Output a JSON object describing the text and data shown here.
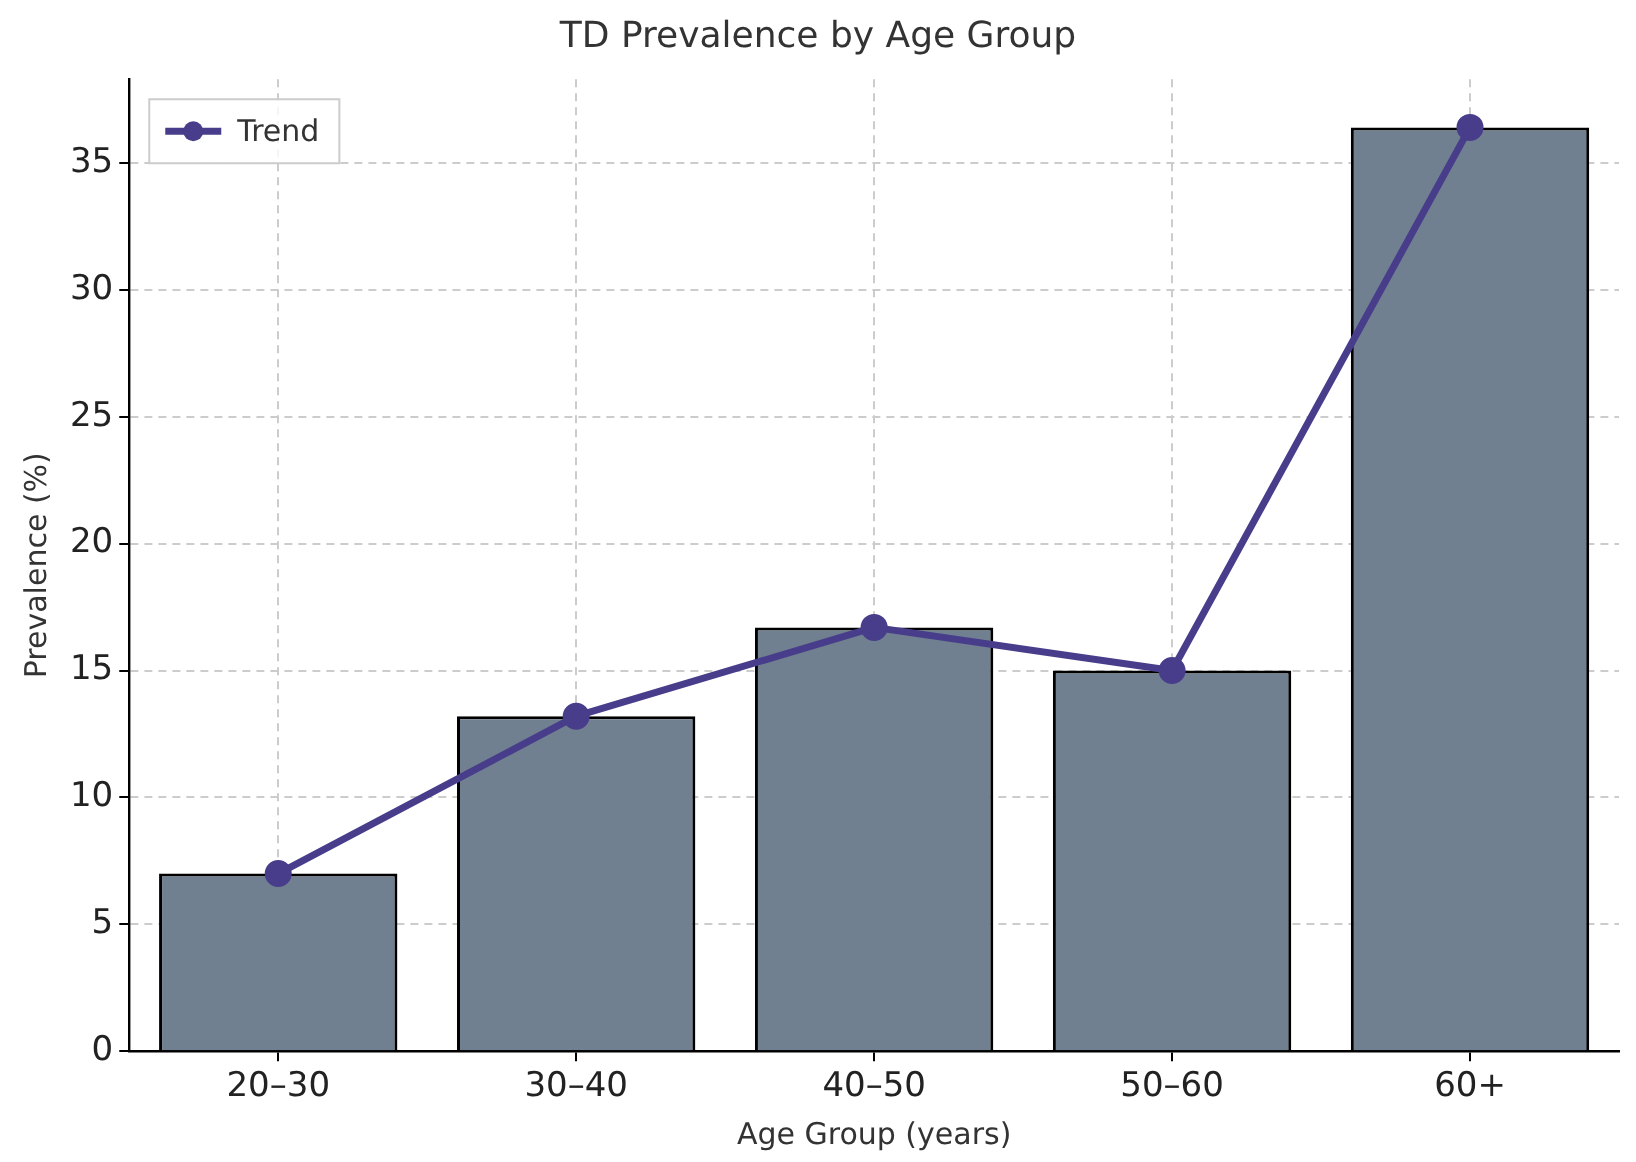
{
  "chart_data": {
    "type": "bar",
    "title": "TD Prevalence by Age Group",
    "xlabel": "Age Group (years)",
    "ylabel": "Prevalence (%)",
    "categories": [
      "20–30",
      "30–40",
      "40–50",
      "50–60",
      "60+"
    ],
    "series": [
      {
        "color": "#708090",
        "values": [
          7.0,
          13.2,
          16.7,
          15.0,
          36.4
        ]
      },
      {
        "type": "line",
        "name": "Trend",
        "color": "#483d8b",
        "values": [
          7.0,
          13.2,
          16.7,
          15.0,
          36.4
        ]
      }
    ],
    "ylim": [
      0,
      38.3
    ],
    "yticks": [
      0,
      5,
      10,
      15,
      20,
      25,
      30,
      35
    ],
    "grid": true,
    "legend": "top left",
    "marker": "circle",
    "line_style": "solid"
  }
}
